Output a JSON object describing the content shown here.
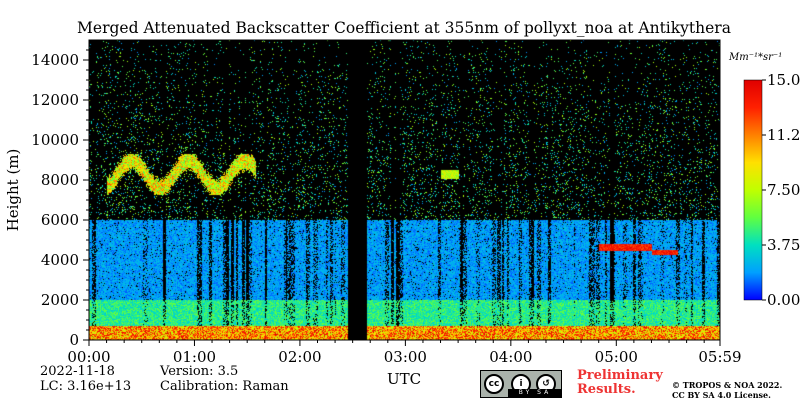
{
  "chart_data": {
    "type": "heatmap",
    "title": "Merged Attenuated Backscatter Coefficient at 355nm of pollyxt_noa at Antikythera",
    "xlabel": "UTC",
    "ylabel": "Height (m)",
    "x_ticks": [
      "00:00",
      "01:00",
      "02:00",
      "03:00",
      "04:00",
      "05:00",
      "05:59"
    ],
    "x_range": [
      "00:00",
      "05:59"
    ],
    "y_ticks": [
      0,
      2000,
      4000,
      6000,
      8000,
      10000,
      12000,
      14000
    ],
    "ylim": [
      0,
      15000
    ],
    "colorbar": {
      "unit_label": "Mm⁻¹*sr⁻¹",
      "ticks": [
        "0.00",
        "3.75",
        "7.50",
        "11.25",
        "15.00"
      ],
      "range": [
        0,
        15
      ],
      "colormap": "jet",
      "colors": [
        "#0000ff",
        "#00a0ff",
        "#00e0c0",
        "#60ff40",
        "#c0ff00",
        "#ffe000",
        "#ff8000",
        "#ff2000",
        "#e00000"
      ]
    },
    "features": [
      {
        "kind": "surface_layer",
        "time_start": "00:00",
        "time_end": "05:59",
        "height_bottom": 0,
        "height_top": 700,
        "value_range": [
          7,
          15
        ]
      },
      {
        "kind": "boundary_layer_aerosol",
        "time_start": "00:00",
        "time_end": "05:59",
        "height_bottom": 700,
        "height_top": 2000,
        "value_range": [
          3,
          6
        ]
      },
      {
        "kind": "aerosol_layer",
        "time_start": "00:00",
        "time_end": "05:59",
        "height_bottom": 2000,
        "height_top": 6000,
        "value_range": [
          1,
          3
        ]
      },
      {
        "kind": "cirrus_cloud",
        "time_start": "00:10",
        "time_end": "01:35",
        "height_bottom": 7300,
        "height_top": 9300,
        "value_range": [
          5,
          12
        ]
      },
      {
        "kind": "cloud",
        "time_start": "03:20",
        "time_end": "03:30",
        "height_bottom": 8100,
        "height_top": 8500,
        "value_range": [
          6,
          9
        ]
      },
      {
        "kind": "cloud",
        "time_start": "04:50",
        "time_end": "05:20",
        "height_bottom": 4500,
        "height_top": 4800,
        "value_range": [
          12,
          15
        ]
      },
      {
        "kind": "cloud",
        "time_start": "05:20",
        "time_end": "05:35",
        "height_bottom": 4300,
        "height_top": 4500,
        "value_range": [
          12,
          15
        ]
      },
      {
        "kind": "no_data_gap",
        "time_start": "02:27",
        "time_end": "02:38",
        "height_bottom": 0,
        "height_top": 15000
      }
    ],
    "grid": false
  },
  "footer": {
    "date": "2022-11-18",
    "lc": "LC: 3.16e+13",
    "version": "Version: 3.5",
    "calibration": "Calibration: Raman",
    "preliminary_line1": "Preliminary",
    "preliminary_line2": "Results.",
    "copyright_line1": "© TROPOS & NOA 2022.",
    "copyright_line2": "CC BY SA 4.0 License.",
    "license_badge": {
      "icon1": "cc",
      "icon2": "i",
      "icon3": "↺",
      "strip_text": "BY SA"
    }
  }
}
